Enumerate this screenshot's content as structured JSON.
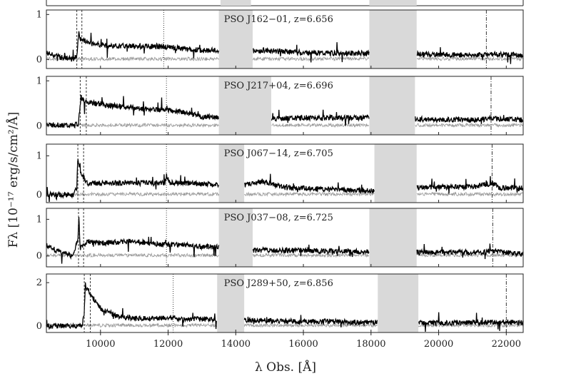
{
  "chart_data": {
    "type": "line",
    "xlabel": "λ Obs. [Å]",
    "ylabel": "Fλ [10⁻¹⁷ erg/s/cm²/Å]",
    "xlim": [
      8400,
      22500
    ],
    "x_ticks": [
      10000,
      12000,
      14000,
      16000,
      18000,
      20000,
      22000
    ],
    "x_tick_labels": [
      "10000",
      "12000",
      "14000",
      "16000",
      "18000",
      "20000",
      "22000"
    ],
    "grid": false,
    "panels": [
      {
        "label": "PSO J162−01, z=6.656",
        "ylim": [
          -0.2,
          1.1
        ],
        "y_ticks": [
          0,
          1
        ],
        "y_tick_labels": [
          "0",
          "1"
        ],
        "bands": [
          [
            13500,
            14500
          ],
          [
            17950,
            19350
          ]
        ],
        "dashed": [
          9300,
          9450
        ],
        "dotted": [
          11870
        ],
        "dashdot": [
          21410
        ],
        "spectrum": {
          "x": [
            8400,
            8800,
            9200,
            9300,
            9360,
            9400,
            9700,
            10200,
            11000,
            11900,
            12500,
            13000,
            13400,
            14600,
            15000,
            16000,
            17000,
            17900,
            19400,
            20000,
            21000,
            21500,
            22500
          ],
          "y": [
            0.15,
            0.05,
            0.0,
            0.1,
            0.6,
            0.45,
            0.38,
            0.3,
            0.3,
            0.28,
            0.24,
            0.2,
            0.2,
            0.18,
            0.2,
            0.15,
            0.14,
            0.14,
            0.12,
            0.11,
            0.1,
            0.12,
            0.1
          ]
        }
      },
      {
        "label": "PSO J217+04, z=6.696",
        "ylim": [
          -0.2,
          1.1
        ],
        "y_ticks": [
          0,
          1
        ],
        "y_tick_labels": [
          "0",
          "1"
        ],
        "bands": [
          [
            13500,
            15050
          ],
          [
            17950,
            19300
          ]
        ],
        "dashed": [
          9400,
          9580
        ],
        "dotted": [
          11950
        ],
        "dashdot": [
          21550
        ],
        "spectrum": {
          "x": [
            8400,
            8800,
            9200,
            9350,
            9420,
            9500,
            9800,
            10300,
            11000,
            11900,
            12500,
            13000,
            13400,
            15100,
            16000,
            17000,
            17900,
            19400,
            20000,
            21000,
            21550,
            22500
          ],
          "y": [
            0.02,
            0.02,
            0.0,
            0.05,
            0.65,
            0.55,
            0.5,
            0.45,
            0.4,
            0.35,
            0.3,
            0.2,
            0.2,
            0.15,
            0.18,
            0.18,
            0.18,
            0.15,
            0.14,
            0.13,
            0.16,
            0.13
          ]
        }
      },
      {
        "label": "PSO J067−14, z=6.705",
        "ylim": [
          -0.2,
          1.3
        ],
        "y_ticks": [
          0,
          1
        ],
        "y_tick_labels": [
          "0",
          "1"
        ],
        "bands": [
          [
            13500,
            14250
          ],
          [
            18100,
            19350
          ]
        ],
        "dashed": [
          9330,
          9500
        ],
        "dotted": [
          11950
        ],
        "dashdot": [
          21580
        ],
        "spectrum": {
          "x": [
            8400,
            8800,
            9200,
            9300,
            9330,
            9400,
            9600,
            10000,
            11000,
            11900,
            11950,
            12050,
            12500,
            13000,
            13400,
            14300,
            14800,
            15500,
            16500,
            18000,
            19400,
            20000,
            21000,
            21580,
            21800,
            22500
          ],
          "y": [
            0.02,
            0.0,
            0.0,
            0.2,
            0.95,
            0.6,
            0.3,
            0.3,
            0.3,
            0.3,
            0.48,
            0.3,
            0.3,
            0.28,
            0.27,
            0.25,
            0.35,
            0.18,
            0.15,
            0.1,
            0.18,
            0.2,
            0.2,
            0.3,
            0.18,
            0.17
          ]
        }
      },
      {
        "label": "PSO J037−08, z=6.725",
        "ylim": [
          -0.3,
          1.3
        ],
        "y_ticks": [
          0,
          1
        ],
        "y_tick_labels": [
          "0",
          "1"
        ],
        "bands": [
          [
            13500,
            14500
          ],
          [
            17950,
            19350
          ]
        ],
        "dashed": [
          9350,
          9500
        ],
        "dotted": [
          11950
        ],
        "dashdot": [
          21600
        ],
        "spectrum": {
          "x": [
            8400,
            8800,
            9200,
            9340,
            9360,
            9400,
            9600,
            10000,
            11000,
            11900,
            12500,
            13000,
            13400,
            14600,
            15000,
            16000,
            17000,
            17900,
            19400,
            20000,
            21000,
            21600,
            22500
          ],
          "y": [
            0.3,
            0.1,
            0.0,
            0.5,
            1.1,
            0.2,
            0.4,
            0.35,
            0.4,
            0.3,
            0.3,
            0.25,
            0.25,
            0.15,
            0.15,
            0.15,
            0.12,
            0.12,
            0.1,
            0.1,
            0.1,
            0.13,
            0.05
          ]
        }
      },
      {
        "label": "PSO J289+50, z=6.856",
        "ylim": [
          -0.3,
          2.4
        ],
        "y_ticks": [
          0,
          2
        ],
        "y_tick_labels": [
          "0",
          "2"
        ],
        "bands": [
          [
            13450,
            14250
          ],
          [
            18200,
            19400
          ]
        ],
        "dashed": [
          9520,
          9700
        ],
        "dotted": [
          12150
        ],
        "dashdot": [
          22000
        ],
        "spectrum": {
          "x": [
            8400,
            9000,
            9450,
            9520,
            9550,
            9700,
            10000,
            10500,
            11000,
            11500,
            12000,
            12500,
            13000,
            13400,
            14300,
            15000,
            16000,
            17000,
            18100,
            19500,
            20000,
            21000,
            22000,
            22500
          ],
          "y": [
            0.0,
            0.0,
            0.0,
            0.5,
            1.9,
            1.5,
            0.8,
            0.45,
            0.35,
            0.35,
            0.4,
            0.32,
            0.32,
            0.3,
            0.25,
            0.25,
            0.2,
            0.2,
            0.15,
            0.15,
            0.15,
            0.15,
            0.18,
            0.15
          ]
        }
      }
    ]
  }
}
